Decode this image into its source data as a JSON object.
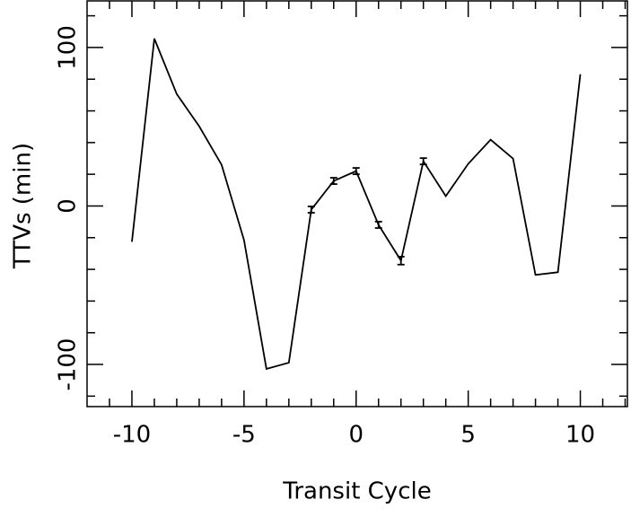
{
  "chart_data": {
    "type": "line",
    "xlabel": "Transit Cycle",
    "ylabel": "TTVs (min)",
    "x": [
      -10,
      -9,
      -8,
      -7,
      -6,
      -5,
      -4,
      -3,
      -2,
      -1,
      0,
      1,
      2,
      3,
      4,
      5,
      6,
      7,
      8,
      9,
      10
    ],
    "series": [
      {
        "color": "#000000",
        "values": [
          -22.6,
          105.6,
          70.6,
          50.3,
          26,
          -21.5,
          -102.8,
          -98.9,
          -2.3,
          15.8,
          22,
          -11.9,
          -34.5,
          28.2,
          6.2,
          26.6,
          41.8,
          29.9,
          -43.5,
          -41.8,
          83.1
        ],
        "errors": [
          null,
          null,
          null,
          null,
          null,
          null,
          null,
          null,
          2,
          2,
          2,
          2,
          2.5,
          2,
          null,
          null,
          null,
          null,
          null,
          null,
          null
        ]
      }
    ],
    "xlim": [
      -12,
      12.1
    ],
    "ylim": [
      -126.6,
      129.4
    ],
    "xticks": [
      -10,
      -5,
      0,
      5,
      10
    ],
    "yticks": [
      -100,
      0,
      100
    ],
    "xminor": [
      -11,
      -9,
      -8,
      -7,
      -6,
      -4,
      -3,
      -2,
      -1,
      1,
      2,
      3,
      4,
      6,
      7,
      8,
      9,
      11,
      12
    ],
    "yminor": [
      -120,
      -80,
      -60,
      -40,
      -20,
      20,
      40,
      60,
      80,
      120
    ]
  }
}
